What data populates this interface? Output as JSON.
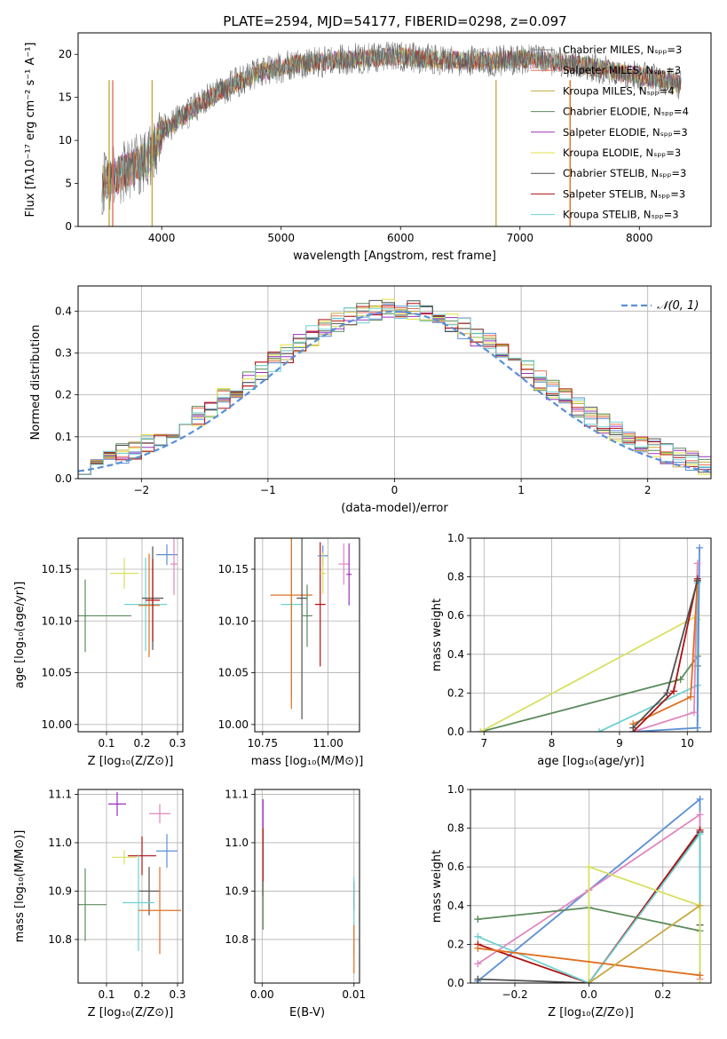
{
  "figure": {
    "title": "PLATE=2594, MJD=54177, FIBERID=0298, z=0.097"
  },
  "series_colors": [
    "#808080",
    "#e8735a",
    "#c8a840",
    "#5b8a5b",
    "#9b30c0",
    "#e0e040",
    "#505050",
    "#b01010",
    "#70d0d0"
  ],
  "chart_data": [
    {
      "id": "spectrum",
      "type": "line",
      "xlabel": "wavelength [Angstrom, rest frame]",
      "ylabel": "Flux [fλ10⁻¹⁷ erg cm⁻² s⁻¹ A⁻¹]",
      "xlim": [
        3300,
        8600
      ],
      "ylim": [
        0,
        22.5
      ],
      "xticks": [
        4000,
        5000,
        6000,
        7000,
        8000
      ],
      "yticks": [
        0,
        5,
        10,
        15,
        20
      ],
      "grid": false,
      "legend_position": "right",
      "legend": [
        "Chabrier MILES, Nₛₚₚ=3",
        "Salpeter MILES, Nₛₚₚ=3",
        "Kroupa MILES, Nₛₚₚ=4",
        "Chabrier ELODIE, Nₛₚₚ=4",
        "Salpeter ELODIE, Nₛₚₚ=3",
        "Kroupa ELODIE, Nₛₚₚ=3",
        "Chabrier STELIB, Nₛₚₚ=3",
        "Salpeter STELIB, Nₛₚₚ=3",
        "Kroupa STELIB, Nₛₚₚ=3"
      ],
      "continuum": {
        "x": [
          3500,
          3700,
          3900,
          4000,
          4200,
          4400,
          4600,
          4800,
          5000,
          5200,
          5400,
          5600,
          5800,
          6000,
          6200,
          6400,
          6600,
          6800,
          7000,
          7200,
          7400,
          7600,
          7800,
          8000,
          8200,
          8350
        ],
        "y": [
          5,
          6.5,
          8,
          11,
          13,
          15,
          16.5,
          17.8,
          18.5,
          19,
          19.2,
          19.5,
          19.6,
          19.8,
          19.5,
          19.3,
          19.3,
          19.2,
          19.5,
          19.2,
          19.0,
          18.5,
          18.0,
          17.5,
          17.0,
          16.5
        ]
      }
    },
    {
      "id": "residuals",
      "type": "step",
      "xlabel": "(data-model)/error",
      "ylabel": "Normed distribution",
      "xlim": [
        -2.5,
        2.5
      ],
      "ylim": [
        0,
        0.46
      ],
      "xticks": [
        -2,
        -1,
        0,
        1,
        2
      ],
      "yticks": [
        0.0,
        0.1,
        0.2,
        0.3,
        0.4
      ],
      "grid": true,
      "legend_position": "top-right",
      "legend": [
        "𝒩(0, 1)"
      ],
      "reference": {
        "type": "normal",
        "mean": 0,
        "sigma": 1,
        "color": "#5b8fd6"
      }
    },
    {
      "id": "age-vs-Z",
      "type": "errorbar",
      "xlabel": "Z [log₁₀(Z/Z⊙)]",
      "ylabel": "age  [log₁₀(age/yr)]",
      "xlim": [
        0.02,
        0.315
      ],
      "ylim": [
        9.993,
        10.18
      ],
      "xticks": [
        0.1,
        0.2,
        0.3
      ],
      "yticks": [
        10.0,
        10.05,
        10.1,
        10.15
      ],
      "grid": true,
      "points": [
        {
          "x": 0.21,
          "y": 10.116,
          "xerr": 0.06,
          "yerr": 0.045,
          "color": "#70d0d0"
        },
        {
          "x": 0.22,
          "y": 10.115,
          "xerr": 0.03,
          "yerr": 0.05,
          "color": "#e07020"
        },
        {
          "x": 0.23,
          "y": 10.122,
          "xerr": 0.03,
          "yerr": 0.05,
          "color": "#505050"
        },
        {
          "x": 0.23,
          "y": 10.12,
          "xerr": 0.02,
          "yerr": 0.04,
          "color": "#b01010"
        },
        {
          "x": 0.27,
          "y": 10.164,
          "xerr": 0.03,
          "yerr": 0.01,
          "color": "#5b8fd6"
        },
        {
          "x": 0.29,
          "y": 10.155,
          "xerr": 0.01,
          "yerr": 0.03,
          "color": "#e087c0"
        },
        {
          "x": 0.15,
          "y": 10.146,
          "xerr": 0.04,
          "yerr": 0.015,
          "color": "#d8e060"
        },
        {
          "x": 0.04,
          "y": 10.105,
          "xerr": 0.13,
          "yerr": 0.035,
          "color": "#5b8a5b"
        }
      ]
    },
    {
      "id": "age-vs-mass",
      "type": "errorbar",
      "xlabel": "mass [log₁₀(M/M⊙)]",
      "ylabel": "",
      "xlim": [
        10.72,
        11.12
      ],
      "ylim": [
        9.993,
        10.18
      ],
      "xticks": [
        10.75,
        11.0
      ],
      "yticks": [
        10.0,
        10.05,
        10.1,
        10.15
      ],
      "grid": true,
      "points": [
        {
          "x": 10.86,
          "y": 10.116,
          "xerr": 0.04,
          "yerr": 0.09,
          "color": "#70d0d0"
        },
        {
          "x": 10.86,
          "y": 10.125,
          "xerr": 0.08,
          "yerr": 0.11,
          "color": "#e07020"
        },
        {
          "x": 10.9,
          "y": 10.122,
          "xerr": 0.02,
          "yerr": 0.117,
          "color": "#505050"
        },
        {
          "x": 10.97,
          "y": 10.116,
          "xerr": 0.02,
          "yerr": 0.06,
          "color": "#b01010"
        },
        {
          "x": 10.98,
          "y": 10.163,
          "xerr": 0.02,
          "yerr": 0.01,
          "color": "#5b8fd6"
        },
        {
          "x": 11.06,
          "y": 10.155,
          "xerr": 0.02,
          "yerr": 0.02,
          "color": "#e087c0"
        },
        {
          "x": 11.08,
          "y": 10.145,
          "xerr": 0.01,
          "yerr": 0.03,
          "color": "#9b30c0"
        },
        {
          "x": 10.98,
          "y": 10.146,
          "xerr": 0.01,
          "yerr": 0.02,
          "color": "#d8e060"
        },
        {
          "x": 10.92,
          "y": 10.105,
          "xerr": 0.02,
          "yerr": 0.03,
          "color": "#5b8a5b"
        }
      ]
    },
    {
      "id": "massweight-vs-age",
      "type": "line",
      "xlabel": "age  [log₁₀(age/yr)]",
      "ylabel": "mass weight",
      "xlim": [
        6.8,
        10.35
      ],
      "ylim": [
        0,
        1.0
      ],
      "xticks": [
        7,
        8,
        9,
        10
      ],
      "yticks": [
        0.0,
        0.2,
        0.4,
        0.6,
        0.8,
        1.0
      ],
      "grid": true,
      "series": [
        {
          "color": "#5b8a5b",
          "x": [
            6.95,
            9.9,
            10.15,
            10.15
          ],
          "y": [
            0.0,
            0.27,
            0.39,
            0.34
          ]
        },
        {
          "color": "#d8e060",
          "x": [
            6.95,
            10.15,
            10.15,
            10.15
          ],
          "y": [
            0.0,
            0.6,
            0.58,
            0.4
          ]
        },
        {
          "color": "#70d0d0",
          "x": [
            8.7,
            10.15,
            10.15,
            10.15
          ],
          "y": [
            0.0,
            0.24,
            0.77,
            0.0
          ]
        },
        {
          "color": "#5b8fd6",
          "x": [
            9.2,
            10.15,
            10.18
          ],
          "y": [
            0.0,
            0.02,
            0.95
          ]
        },
        {
          "color": "#e087c0",
          "x": [
            9.2,
            10.1,
            10.15
          ],
          "y": [
            0.0,
            0.1,
            0.87
          ]
        },
        {
          "color": "#e07020",
          "x": [
            9.2,
            10.05,
            10.15
          ],
          "y": [
            0.04,
            0.18,
            0.78
          ]
        },
        {
          "color": "#b01010",
          "x": [
            9.2,
            9.8,
            10.15
          ],
          "y": [
            0.0,
            0.21,
            0.79
          ]
        },
        {
          "color": "#505050",
          "x": [
            9.2,
            9.7,
            10.15
          ],
          "y": [
            0.02,
            0.2,
            0.78
          ]
        }
      ]
    },
    {
      "id": "mass-vs-Z",
      "type": "errorbar",
      "xlabel": "Z [log₁₀(Z/Z⊙)]",
      "ylabel": "mass [log₁₀(M/M⊙)]",
      "xlim": [
        0.02,
        0.315
      ],
      "ylim": [
        10.71,
        11.11
      ],
      "xticks": [
        0.1,
        0.2,
        0.3
      ],
      "yticks": [
        10.8,
        10.9,
        11.0,
        11.1
      ],
      "grid": true,
      "points": [
        {
          "x": 0.13,
          "y": 11.08,
          "xerr": 0.025,
          "yerr": 0.025,
          "color": "#9b30c0"
        },
        {
          "x": 0.25,
          "y": 11.06,
          "xerr": 0.03,
          "yerr": 0.02,
          "color": "#e087c0"
        },
        {
          "x": 0.15,
          "y": 10.97,
          "xerr": 0.035,
          "yerr": 0.015,
          "color": "#d8e060"
        },
        {
          "x": 0.2,
          "y": 10.973,
          "xerr": 0.04,
          "yerr": 0.04,
          "color": "#b01010"
        },
        {
          "x": 0.27,
          "y": 10.983,
          "xerr": 0.03,
          "yerr": 0.035,
          "color": "#5b8fd6"
        },
        {
          "x": 0.22,
          "y": 10.9,
          "xerr": 0.03,
          "yerr": 0.05,
          "color": "#505050"
        },
        {
          "x": 0.19,
          "y": 10.876,
          "xerr": 0.045,
          "yerr": 0.1,
          "color": "#70d0d0"
        },
        {
          "x": 0.04,
          "y": 10.872,
          "xerr": 0.06,
          "yerr": 0.075,
          "color": "#5b8a5b"
        },
        {
          "x": 0.25,
          "y": 10.86,
          "xerr": 0.06,
          "yerr": 0.09,
          "color": "#e07020"
        }
      ]
    },
    {
      "id": "mass-vs-EBV",
      "type": "errorbar",
      "xlabel": "E(B-V)",
      "ylabel": "",
      "xlim": [
        -0.0008,
        0.0106
      ],
      "ylim": [
        10.71,
        11.11
      ],
      "xticks": [
        0.0,
        0.01
      ],
      "yticks": [
        10.8,
        10.9,
        11.0,
        11.1
      ],
      "grid": true,
      "points": [
        {
          "x": 0.0001,
          "y": 11.06,
          "xerr": 0,
          "yerr": 0.03,
          "color": "#9b30c0"
        },
        {
          "x": 0.0001,
          "y": 10.96,
          "xerr": 0,
          "yerr": 0.07,
          "color": "#b01010"
        },
        {
          "x": 0.0001,
          "y": 10.87,
          "xerr": 0,
          "yerr": 0.05,
          "color": "#5b8a5b"
        },
        {
          "x": 0.01,
          "y": 10.89,
          "xerr": 0,
          "yerr": 0.03,
          "color": "#505050"
        },
        {
          "x": 0.01,
          "y": 10.85,
          "xerr": 0,
          "yerr": 0.08,
          "color": "#70d0d0"
        },
        {
          "x": 0.01,
          "y": 10.78,
          "xerr": 0,
          "yerr": 0.05,
          "color": "#e07020"
        }
      ]
    },
    {
      "id": "massweight-vs-Z",
      "type": "line",
      "xlabel": "Z [log₁₀(Z/Z⊙)]",
      "ylabel": "mass weight",
      "xlim": [
        -0.32,
        0.33
      ],
      "ylim": [
        0,
        1.0
      ],
      "xticks": [
        -0.2,
        0.0,
        0.2
      ],
      "yticks": [
        0.0,
        0.2,
        0.4,
        0.6,
        0.8,
        1.0
      ],
      "grid": true,
      "series": [
        {
          "color": "#5b8fd6",
          "x": [
            -0.3,
            0.3,
            0.3
          ],
          "y": [
            0.01,
            0.95,
            0.78
          ]
        },
        {
          "color": "#e087c0",
          "x": [
            -0.3,
            0.0,
            0.3,
            0.3
          ],
          "y": [
            0.1,
            0.48,
            0.87,
            0.02
          ]
        },
        {
          "color": "#505050",
          "x": [
            -0.3,
            0.0,
            0.3,
            0.3
          ],
          "y": [
            0.02,
            0.0,
            0.78,
            0.3
          ]
        },
        {
          "color": "#b01010",
          "x": [
            -0.3,
            0.0,
            0.3
          ],
          "y": [
            0.2,
            0.0,
            0.79
          ]
        },
        {
          "color": "#70d0d0",
          "x": [
            -0.3,
            0.0,
            0.3,
            0.3
          ],
          "y": [
            0.24,
            0.0,
            0.77,
            0.04
          ]
        },
        {
          "color": "#5b8a5b",
          "x": [
            -0.3,
            0.0,
            0.3
          ],
          "y": [
            0.33,
            0.39,
            0.27
          ]
        },
        {
          "color": "#d8e060",
          "x": [
            0.0,
            0.0,
            0.3,
            0.3
          ],
          "y": [
            0.0,
            0.6,
            0.4,
            0.0
          ]
        },
        {
          "color": "#e07020",
          "x": [
            -0.3,
            0.3
          ],
          "y": [
            0.18,
            0.04
          ]
        },
        {
          "color": "#c8a840",
          "x": [
            0.0,
            0.3
          ],
          "y": [
            0.0,
            0.4
          ]
        }
      ]
    }
  ]
}
